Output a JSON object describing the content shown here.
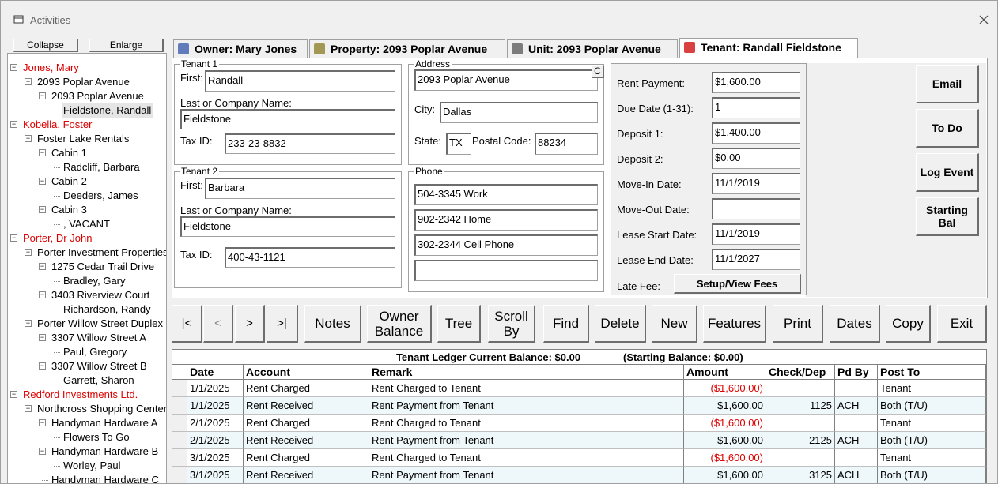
{
  "window": {
    "title": "Activities"
  },
  "sidebar": {
    "buttons": [
      "Collapse",
      "Enlarge"
    ],
    "tree": [
      {
        "label": "Jones, Mary",
        "children": [
          {
            "label": "2093 Poplar Avenue",
            "children": [
              {
                "label": "2093 Poplar Avenue",
                "children": [
                  {
                    "label": "Fieldstone, Randall"
                  }
                ]
              }
            ]
          }
        ]
      },
      {
        "label": "Kobella, Foster",
        "children": [
          {
            "label": "Foster Lake Rentals",
            "children": [
              {
                "label": "Cabin 1",
                "children": [
                  {
                    "label": "Radcliff, Barbara"
                  }
                ]
              },
              {
                "label": "Cabin 2",
                "children": [
                  {
                    "label": "Deeders, James"
                  }
                ]
              },
              {
                "label": "Cabin 3",
                "children": [
                  {
                    "label": ", VACANT"
                  }
                ]
              }
            ]
          }
        ]
      },
      {
        "label": "Porter, Dr John",
        "children": [
          {
            "label": "Porter Investment Properties",
            "children": [
              {
                "label": "1275 Cedar Trail Drive",
                "children": [
                  {
                    "label": "Bradley, Gary"
                  }
                ]
              },
              {
                "label": "3403 Riverview Court",
                "children": [
                  {
                    "label": "Richardson, Randy"
                  }
                ]
              }
            ]
          },
          {
            "label": "Porter Willow Street Duplex",
            "children": [
              {
                "label": "3307 Willow Street A",
                "children": [
                  {
                    "label": "Paul, Gregory"
                  }
                ]
              },
              {
                "label": "3307 Willow Street B",
                "children": [
                  {
                    "label": "Garrett, Sharon"
                  }
                ]
              }
            ]
          }
        ]
      },
      {
        "label": "Redford Investments Ltd.",
        "children": [
          {
            "label": "Northcross Shopping Center",
            "children": [
              {
                "label": "Handyman Hardware A",
                "children": [
                  {
                    "label": "Flowers To Go"
                  }
                ]
              },
              {
                "label": "Handyman Hardware B",
                "children": [
                  {
                    "label": "Worley, Paul"
                  }
                ]
              },
              {
                "label": "Handyman Hardware C"
              }
            ]
          }
        ]
      }
    ]
  },
  "tabs": [
    "Owner: Mary Jones",
    "Property: 2093 Poplar Avenue",
    "Unit: 2093 Poplar Avenue",
    "Tenant: Randall Fieldstone"
  ],
  "tenant1": {
    "title": "Tenant 1",
    "first_label": "First:",
    "first": "Randall",
    "last_label": "Last or Company Name:",
    "last": "Fieldstone",
    "tax_label": "Tax ID:",
    "tax": "233-23-8832"
  },
  "tenant2": {
    "title": "Tenant 2",
    "first_label": "First:",
    "first": "Barbara",
    "last_label": "Last or Company Name:",
    "last": "Fieldstone",
    "tax_label": "Tax ID:",
    "tax": "400-43-1121"
  },
  "address": {
    "title": "Address",
    "street": "2093 Poplar Avenue",
    "button": "C",
    "city_label": "City:",
    "city": "Dallas",
    "state_label": "State:",
    "state": "TX",
    "postal_label": "Postal Code:",
    "postal": "88234"
  },
  "phone": {
    "title": "Phone",
    "numbers": [
      "504-3345 Work",
      "902-2342 Home",
      "302-2344 Cell Phone"
    ]
  },
  "lease": {
    "fields": [
      {
        "label": "Rent Payment:",
        "value": "$1,600.00"
      },
      {
        "label": "Due Date (1-31):",
        "value": "1"
      },
      {
        "label": "Deposit 1:",
        "value": "$1,400.00"
      },
      {
        "label": "Deposit 2:",
        "value": "$0.00"
      },
      {
        "label": "Move-In Date:",
        "value": "11/1/2019"
      },
      {
        "label": "Move-Out Date:"
      },
      {
        "label": "Lease Start Date:",
        "value": "11/1/2019"
      },
      {
        "label": "Lease End Date:",
        "value": "11/1/2027"
      }
    ],
    "late_fee_label": "Late Fee:",
    "fees_button": "Setup/View Fees"
  },
  "actions": [
    "Email",
    "To Do",
    "Log Event",
    "Starting Bal"
  ],
  "toolbar": [
    "|<",
    "<",
    ">",
    ">|",
    "Notes",
    "Owner Balance",
    "Tree",
    "Scroll By",
    "Find",
    "Delete",
    "New",
    "Features",
    "Print",
    "Dates",
    "Copy",
    "Exit"
  ],
  "ledger": {
    "title": "Tenant Ledger Current Balance: $0.00",
    "subtitle": "(Starting Balance: $0.00)",
    "columns": [
      "Date",
      "Account",
      "Remark",
      "Amount",
      "Check/Dep",
      "Pd By",
      "Post To"
    ],
    "rows": [
      [
        "1/1/2025",
        "Rent Charged",
        "Rent Charged to Tenant",
        "($1,600.00)",
        null,
        null,
        "Tenant"
      ],
      [
        "1/1/2025",
        "Rent Received",
        "Rent Payment from Tenant",
        "$1,600.00",
        "1125",
        "ACH",
        "Both (T/U)"
      ],
      [
        "2/1/2025",
        "Rent Charged",
        "Rent Charged to Tenant",
        "($1,600.00)",
        null,
        null,
        "Tenant"
      ],
      [
        "2/1/2025",
        "Rent Received",
        "Rent Payment from Tenant",
        "$1,600.00",
        "2125",
        "ACH",
        "Both (T/U)"
      ],
      [
        "3/1/2025",
        "Rent Charged",
        "Rent Charged to Tenant",
        "($1,600.00)",
        null,
        null,
        "Tenant"
      ],
      [
        "3/1/2025",
        "Rent Received",
        "Rent Payment from Tenant",
        "$1,600.00",
        "3125",
        "ACH",
        "Both (T/U)"
      ]
    ]
  }
}
